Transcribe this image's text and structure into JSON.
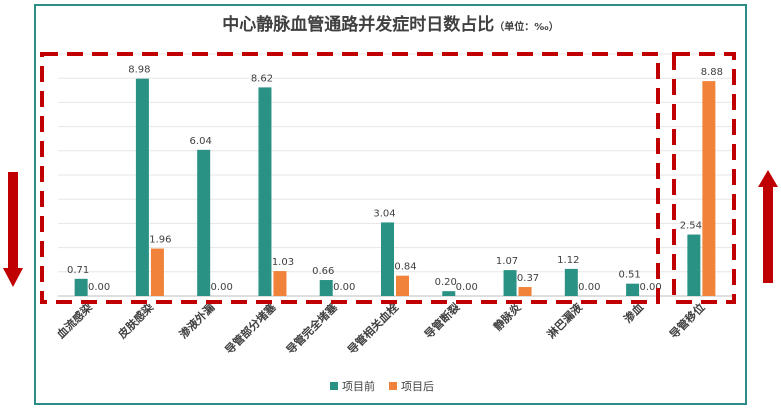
{
  "chart_data": {
    "type": "bar",
    "title": "中心静脉血管通路并发症时日数占比",
    "unit_label": "（单位：‰）",
    "categories": [
      "血流感染",
      "皮肤感染",
      "渗液外漏",
      "导管部分堵塞",
      "导管完全堵塞",
      "导管相关血栓",
      "导管断裂",
      "静脉炎",
      "淋巴漏液",
      "渗血",
      "导管移位"
    ],
    "series": [
      {
        "name": "项目前",
        "color": "#2a9285",
        "values": [
          0.71,
          8.98,
          6.04,
          8.62,
          0.66,
          3.04,
          0.2,
          1.07,
          1.12,
          0.51,
          2.54
        ]
      },
      {
        "name": "项目后",
        "color": "#f0823a",
        "values": [
          0.0,
          1.96,
          0.0,
          1.03,
          0.0,
          0.84,
          0.0,
          0.37,
          0.0,
          0.0,
          8.88
        ]
      }
    ],
    "value_labels": [
      [
        "0.71",
        "8.98",
        "6.04",
        "8.62",
        "0.66",
        "3.04",
        "0.20",
        "1.07",
        "1.12",
        "0.51",
        "2.54"
      ],
      [
        "0.00",
        "1.96",
        "0.00",
        "1.03",
        "0.00",
        "0.84",
        "0.00",
        "0.37",
        "0.00",
        "0.00",
        "8.88"
      ]
    ],
    "ylim": [
      0,
      10
    ],
    "grid": true,
    "legend_position": "bottom",
    "annotations": {
      "dashed_box_color": "#c00000",
      "left_arrow": "down",
      "right_arrow": "up",
      "arrow_color": "#c00000"
    }
  }
}
